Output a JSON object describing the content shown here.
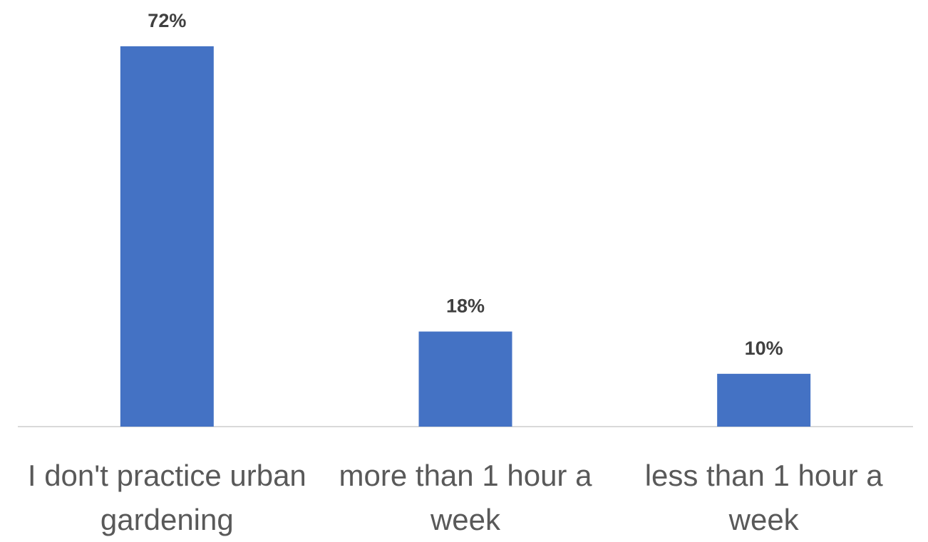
{
  "chart_data": {
    "type": "bar",
    "categories": [
      "I don't practice urban gardening",
      "more than 1 hour a week",
      "less than 1 hour a week"
    ],
    "values": [
      72,
      18,
      10
    ],
    "value_labels": [
      "72%",
      "18%",
      "10%"
    ],
    "color": "#4472c4"
  }
}
